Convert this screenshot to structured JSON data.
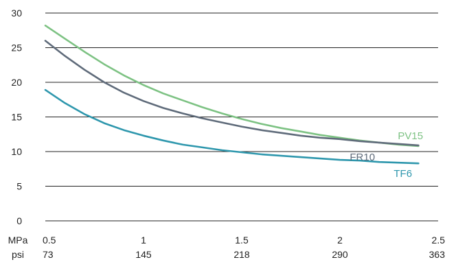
{
  "chart_data": {
    "type": "line",
    "title": "",
    "xlabel": "",
    "ylabel": "",
    "xlim": [
      0.5,
      2.5
    ],
    "ylim": [
      0,
      30
    ],
    "grid": "horizontal",
    "y_ticks": [
      "0",
      "5",
      "10",
      "15",
      "20",
      "25",
      "30"
    ],
    "x_axis_rows": [
      {
        "label": "MPa",
        "ticks": [
          "0.5",
          "1",
          "1.5",
          "2",
          "2.5"
        ]
      },
      {
        "label": "psi",
        "ticks": [
          "73",
          "145",
          "218",
          "290",
          "363"
        ]
      }
    ],
    "x_tick_values": [
      0.5,
      1,
      1.5,
      2,
      2.5
    ],
    "series": [
      {
        "name": "PV15",
        "color": "#7dc283",
        "x": [
          0.5,
          0.6,
          0.7,
          0.8,
          0.9,
          1.0,
          1.1,
          1.2,
          1.3,
          1.4,
          1.5,
          1.6,
          1.7,
          1.8,
          1.9,
          2.0,
          2.1,
          2.2,
          2.3,
          2.4
        ],
        "y": [
          28.2,
          26.3,
          24.4,
          22.6,
          21.0,
          19.6,
          18.4,
          17.4,
          16.4,
          15.5,
          14.7,
          14.0,
          13.4,
          12.9,
          12.4,
          12.0,
          11.6,
          11.3,
          11.0,
          10.8
        ]
      },
      {
        "name": "FR10",
        "color": "#5f6b7a",
        "x": [
          0.5,
          0.6,
          0.7,
          0.8,
          0.9,
          1.0,
          1.1,
          1.2,
          1.3,
          1.4,
          1.5,
          1.6,
          1.7,
          1.8,
          1.9,
          2.0,
          2.1,
          2.2,
          2.3,
          2.4
        ],
        "y": [
          26.0,
          23.8,
          21.8,
          20.0,
          18.5,
          17.3,
          16.3,
          15.5,
          14.8,
          14.2,
          13.6,
          13.1,
          12.7,
          12.3,
          12.0,
          11.8,
          11.5,
          11.3,
          11.1,
          10.9
        ]
      },
      {
        "name": "TF6",
        "color": "#2e97ad",
        "x": [
          0.5,
          0.6,
          0.7,
          0.8,
          0.9,
          1.0,
          1.1,
          1.2,
          1.3,
          1.4,
          1.5,
          1.6,
          1.7,
          1.8,
          1.9,
          2.0,
          2.1,
          2.2,
          2.3,
          2.4
        ],
        "y": [
          18.9,
          17.0,
          15.4,
          14.1,
          13.1,
          12.3,
          11.6,
          11.0,
          10.6,
          10.2,
          9.9,
          9.6,
          9.4,
          9.2,
          9.0,
          8.8,
          8.7,
          8.5,
          8.4,
          8.3
        ]
      }
    ]
  }
}
